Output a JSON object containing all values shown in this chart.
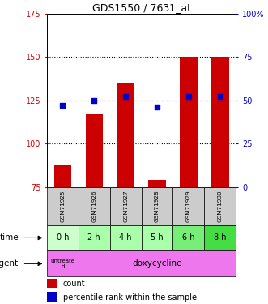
{
  "title": "GDS1550 / 7631_at",
  "samples": [
    "GSM71925",
    "GSM71926",
    "GSM71927",
    "GSM71928",
    "GSM71929",
    "GSM71930"
  ],
  "bar_values": [
    88,
    117,
    135,
    79,
    150,
    150
  ],
  "percentile_values": [
    47,
    50,
    52,
    46,
    52,
    52
  ],
  "left_ylim": [
    75,
    175
  ],
  "right_ylim": [
    0,
    100
  ],
  "left_yticks": [
    75,
    100,
    125,
    150,
    175
  ],
  "right_yticks": [
    0,
    25,
    50,
    75,
    100
  ],
  "right_ytick_labels": [
    "0",
    "25",
    "50",
    "75",
    "100%"
  ],
  "gridlines": [
    100,
    125,
    150
  ],
  "bar_color": "#CC0000",
  "dot_color": "#0000CC",
  "bar_width": 0.55,
  "time_labels": [
    "0 h",
    "2 h",
    "4 h",
    "5 h",
    "6 h",
    "8 h"
  ],
  "time_colors": [
    "#CCFFCC",
    "#AAFFAA",
    "#AAFFAA",
    "#AAFFAA",
    "#77EE77",
    "#44DD44"
  ],
  "agent_bg_color": "#EE77EE",
  "sample_bg_color": "#CCCCCC",
  "legend_count_color": "#CC0000",
  "legend_pct_color": "#0000CC",
  "left_axis_color": "#CC0000",
  "right_axis_color": "#0000CC",
  "n_samples": 6
}
